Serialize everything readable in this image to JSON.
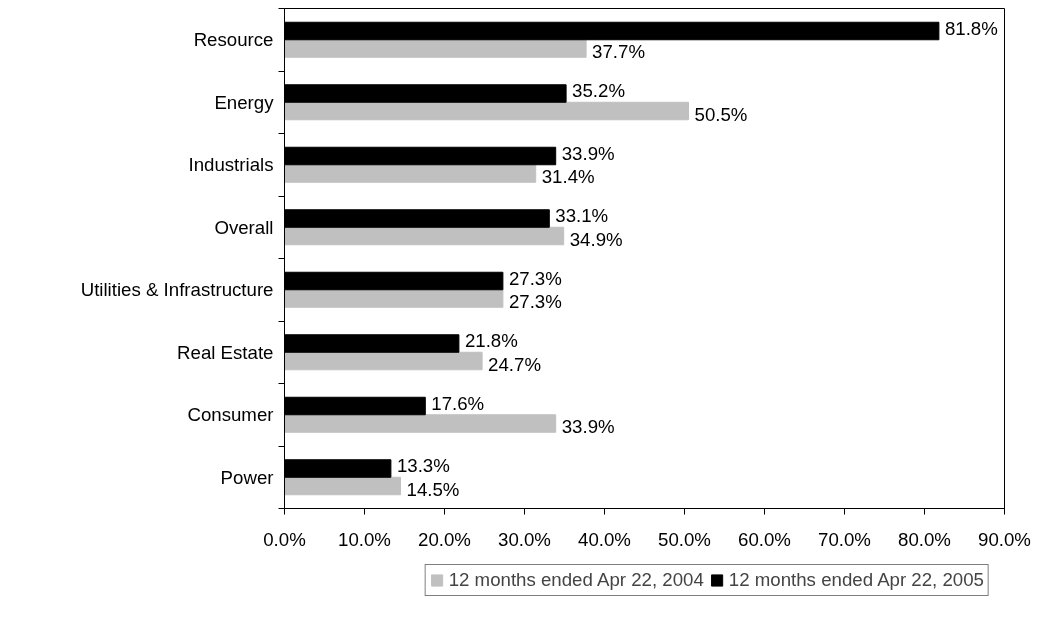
{
  "chart_data": {
    "type": "bar",
    "orientation": "horizontal",
    "categories": [
      "Resource",
      "Energy",
      "Industrials",
      "Overall",
      "Utilities & Infrastructure",
      "Real Estate",
      "Consumer",
      "Power"
    ],
    "series": [
      {
        "name": "12 months ended Apr 22, 2004",
        "color": "#c0c0c0",
        "values": [
          37.7,
          50.5,
          31.4,
          34.9,
          27.3,
          24.7,
          33.9,
          14.5
        ],
        "value_labels": [
          "37.7%",
          "50.5%",
          "31.4%",
          "34.9%",
          "27.3%",
          "24.7%",
          "33.9%",
          "14.5%"
        ]
      },
      {
        "name": "12 months ended Apr 22, 2005",
        "color": "#000000",
        "values": [
          81.8,
          35.2,
          33.9,
          33.1,
          27.3,
          21.8,
          17.6,
          13.3
        ],
        "value_labels": [
          "81.8%",
          "35.2%",
          "33.9%",
          "33.1%",
          "27.3%",
          "21.8%",
          "17.6%",
          "13.3%"
        ]
      }
    ],
    "xlim": [
      0,
      90
    ],
    "xticks": [
      {
        "value": 0,
        "label": "0.0%"
      },
      {
        "value": 10,
        "label": "10.0%"
      },
      {
        "value": 20,
        "label": "20.0%"
      },
      {
        "value": 30,
        "label": "30.0%"
      },
      {
        "value": 40,
        "label": "40.0%"
      },
      {
        "value": 50,
        "label": "50.0%"
      },
      {
        "value": 60,
        "label": "60.0%"
      },
      {
        "value": 70,
        "label": "70.0%"
      },
      {
        "value": 80,
        "label": "80.0%"
      },
      {
        "value": 90,
        "label": "90.0%"
      }
    ],
    "grid": false,
    "legend": "bottom"
  }
}
